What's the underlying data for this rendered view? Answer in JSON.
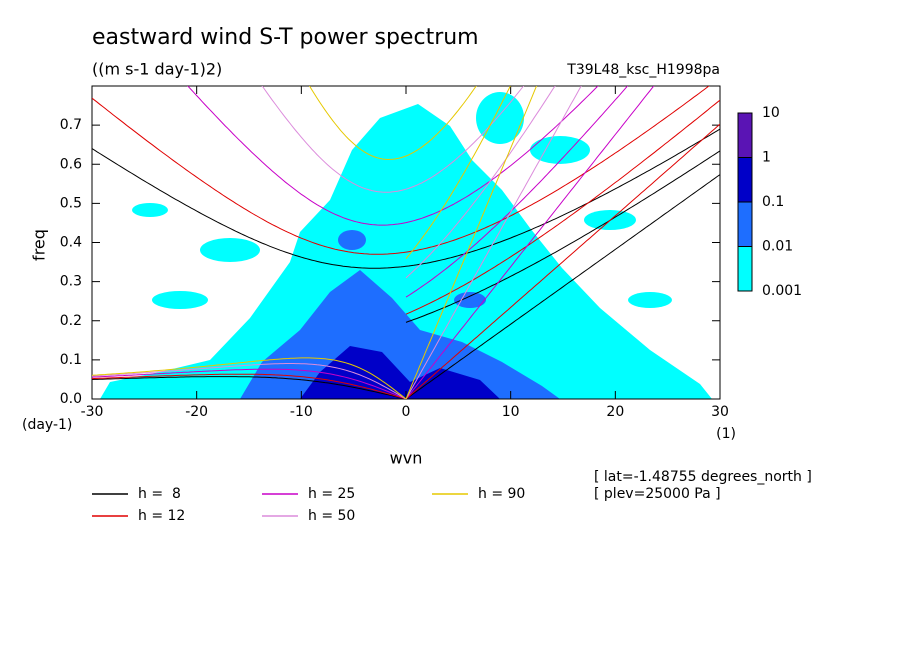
{
  "chart_data": {
    "type": "wave-spectrum",
    "title": "eastward wind S-T power spectrum",
    "subtitle": "((m s-1 day-1)2)",
    "run_label": "T39L48_ksc_H1998pa",
    "x_label": "wvn",
    "y_label": "freq",
    "x_unit": "(1)",
    "y_unit": "(day-1)",
    "xlim": [
      -30,
      30
    ],
    "xticks": [
      -30,
      -20,
      -10,
      0,
      10,
      20,
      30
    ],
    "ylim": [
      0,
      0.8
    ],
    "yticks": [
      {
        "value": 0,
        "label": "0.0"
      },
      0.1,
      0.2,
      0.3,
      0.4,
      0.5,
      0.6,
      0.7
    ],
    "colorbar": {
      "levels": [
        10,
        1,
        0.1,
        0.01,
        0.001
      ],
      "colors": [
        "#5a14b4",
        "#0000c8",
        "#1e6eff",
        "#00ffff"
      ]
    },
    "series": [
      {
        "name": "h =  8",
        "h": 8,
        "color": "#000000"
      },
      {
        "name": "h = 12",
        "h": 12,
        "color": "#e00000"
      },
      {
        "name": "h = 25",
        "h": 25,
        "color": "#c800c8"
      },
      {
        "name": "h = 50",
        "h": 50,
        "color": "#dc8cdc"
      },
      {
        "name": "h = 90",
        "h": 90,
        "color": "#e6c800"
      }
    ],
    "annotations": [
      "[ lat=-1.48755 degrees_north ]",
      "[ plev=25000 Pa ]"
    ]
  }
}
